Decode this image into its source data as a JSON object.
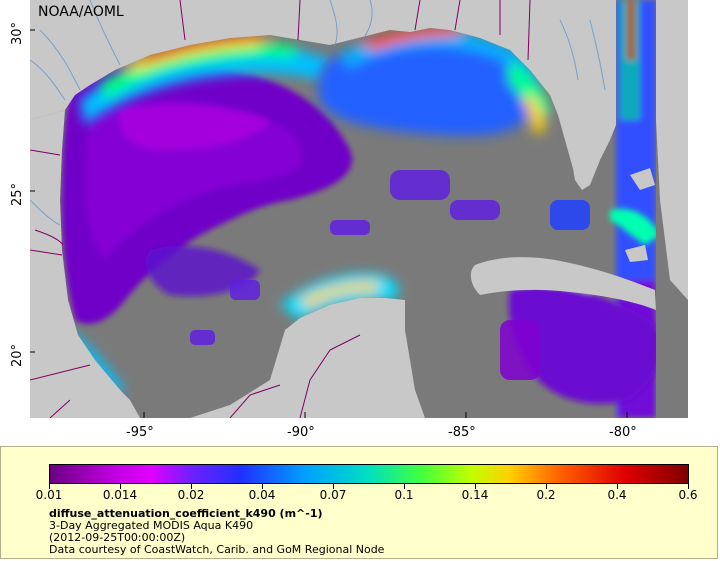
{
  "map": {
    "credit": "NOAA/AOML",
    "x_ticks": [
      "-95°",
      "-90°",
      "-85°",
      "-80°"
    ],
    "y_ticks": [
      "30°",
      "25°",
      "20°"
    ]
  },
  "legend": {
    "colorbar_ticks": [
      "0.01",
      "0.014",
      "0.02",
      "0.04",
      "0.07",
      "0.1",
      "0.14",
      "0.2",
      "0.4",
      "0.6"
    ],
    "variable": "diffuse_attenuation_coefficient_k490 (m^-1)",
    "product": "3-Day Aggregated MODIS Aqua K490",
    "date": "(2012-09-25T00:00:00Z)",
    "courtesy": "Data courtesy of CoastWatch, Carib. and GoM Regional Node"
  },
  "colors": {
    "land": "#c8c8c8",
    "no_data": "#7a7a7a",
    "legend_bg": "#ffffcc",
    "border_line": "#800060",
    "river_line": "#7aa0c8"
  }
}
